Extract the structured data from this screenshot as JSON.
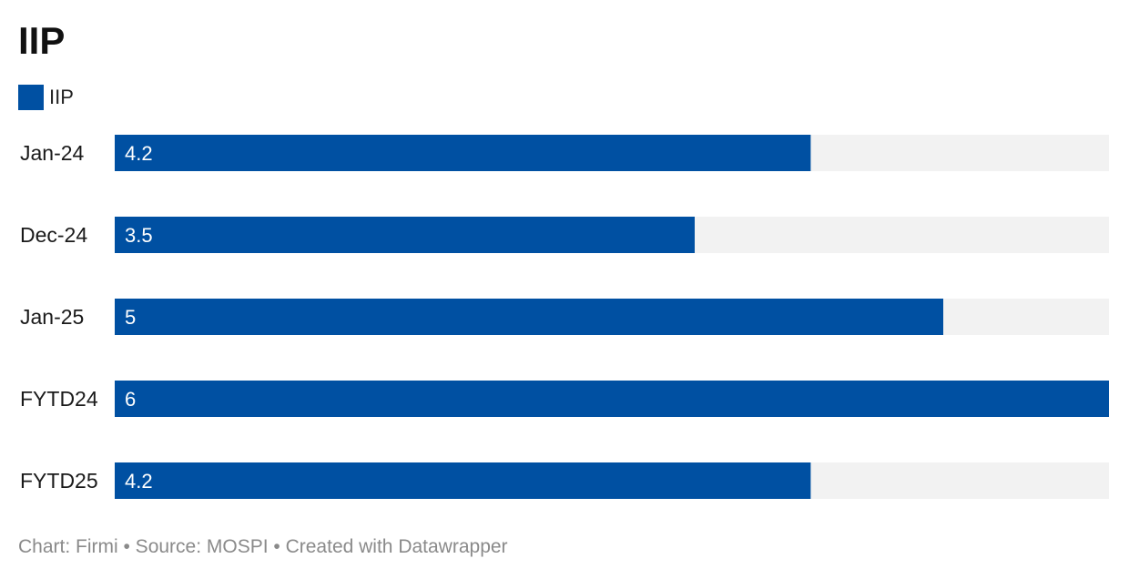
{
  "colors": {
    "bar": "#0050A2",
    "track": "#F2F2F2",
    "legend_swatch": "#0050A2"
  },
  "chart_data": {
    "type": "bar",
    "orientation": "horizontal",
    "title": "IIP",
    "legend": [
      {
        "name": "IIP",
        "color": "#0050A2"
      }
    ],
    "categories": [
      "Jan-24",
      "Dec-24",
      "Jan-25",
      "FYTD24",
      "FYTD25"
    ],
    "series": [
      {
        "name": "IIP",
        "values": [
          4.2,
          3.5,
          5,
          6,
          4.2
        ]
      }
    ],
    "value_labels": [
      "4.2",
      "3.5",
      "5",
      "6",
      "4.2"
    ],
    "xlim": [
      0,
      6
    ],
    "xlabel": "",
    "ylabel": "",
    "grid": false
  },
  "footer": {
    "text": "Chart: Firmi • Source: MOSPI • Created with Datawrapper"
  }
}
